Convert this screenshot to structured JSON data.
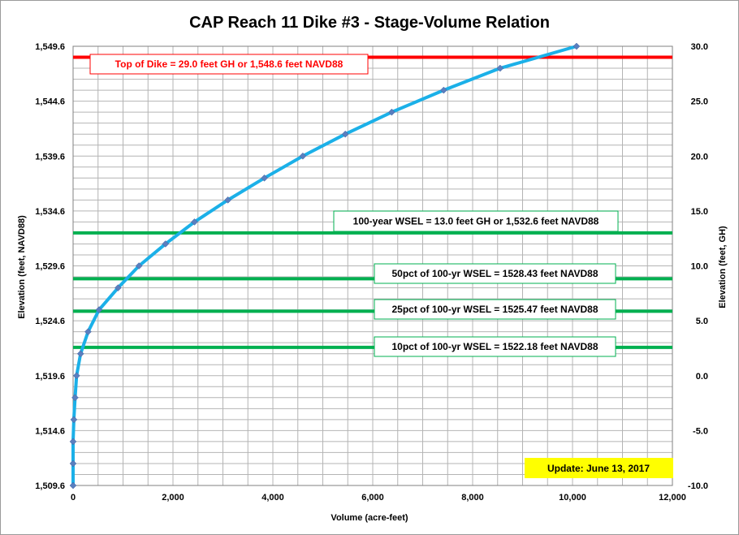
{
  "chart_data": {
    "type": "line",
    "title": "CAP Reach 11 Dike #3 - Stage-Volume Relation",
    "xlabel": "Volume (acre-feet)",
    "ylabel_left": "Elevation  (feet, NAVD88)",
    "ylabel_right": "Elevation  (feet, GH)",
    "xlim": [
      0,
      12000
    ],
    "ylim_left": [
      1509.6,
      1549.6
    ],
    "ylim_right": [
      -10.0,
      30.0
    ],
    "x_ticks": [
      "0",
      "2,000",
      "4,000",
      "6,000",
      "8,000",
      "10,000",
      "12,000"
    ],
    "y_ticks_left": [
      "1,509.6",
      "1,514.6",
      "1,519.6",
      "1,524.6",
      "1,529.6",
      "1,534.6",
      "1,539.6",
      "1,544.6",
      "1,549.6"
    ],
    "y_ticks_right": [
      "-10.0",
      "-5.0",
      "0.0",
      "5.0",
      "10.0",
      "15.0",
      "20.0",
      "25.0",
      "30.0"
    ],
    "grid": true,
    "series": [
      {
        "color": "#1bb0e8",
        "marker_color": "#5a7fbf",
        "x": [
          0,
          0,
          0,
          15,
          40,
          70,
          150,
          300,
          520,
          900,
          1320,
          1850,
          2430,
          3100,
          3830,
          4600,
          5450,
          6380,
          7420,
          8550,
          10080
        ],
        "y": [
          1509.6,
          1511.6,
          1513.6,
          1515.6,
          1517.6,
          1519.6,
          1521.6,
          1523.6,
          1525.6,
          1527.6,
          1529.6,
          1531.6,
          1533.6,
          1535.6,
          1537.6,
          1539.6,
          1541.6,
          1543.6,
          1545.6,
          1547.6,
          1549.6
        ]
      }
    ],
    "reference_lines": [
      {
        "elevation": 1548.6,
        "color": "#ff0000",
        "label": "Top of Dike = 29.0  feet GH or 1,548.6  feet NAVD88"
      },
      {
        "elevation": 1532.6,
        "color": "#00b050",
        "label": "100-year WSEL = 13.0  feet GH or 1,532.6  feet NAVD88"
      },
      {
        "elevation": 1528.43,
        "color": "#00b050",
        "label": "50pct of 100-yr WSEL = 1528.43  feet NAVD88"
      },
      {
        "elevation": 1525.47,
        "color": "#00b050",
        "label": "25pct of 100-yr WSEL = 1525.47  feet NAVD88"
      },
      {
        "elevation": 1522.18,
        "color": "#00b050",
        "label": "10pct of 100-yr WSEL = 1522.18  feet NAVD88"
      }
    ],
    "annotations": [
      {
        "text": "Update: June 13, 2017",
        "background": "#ffff00"
      }
    ]
  }
}
